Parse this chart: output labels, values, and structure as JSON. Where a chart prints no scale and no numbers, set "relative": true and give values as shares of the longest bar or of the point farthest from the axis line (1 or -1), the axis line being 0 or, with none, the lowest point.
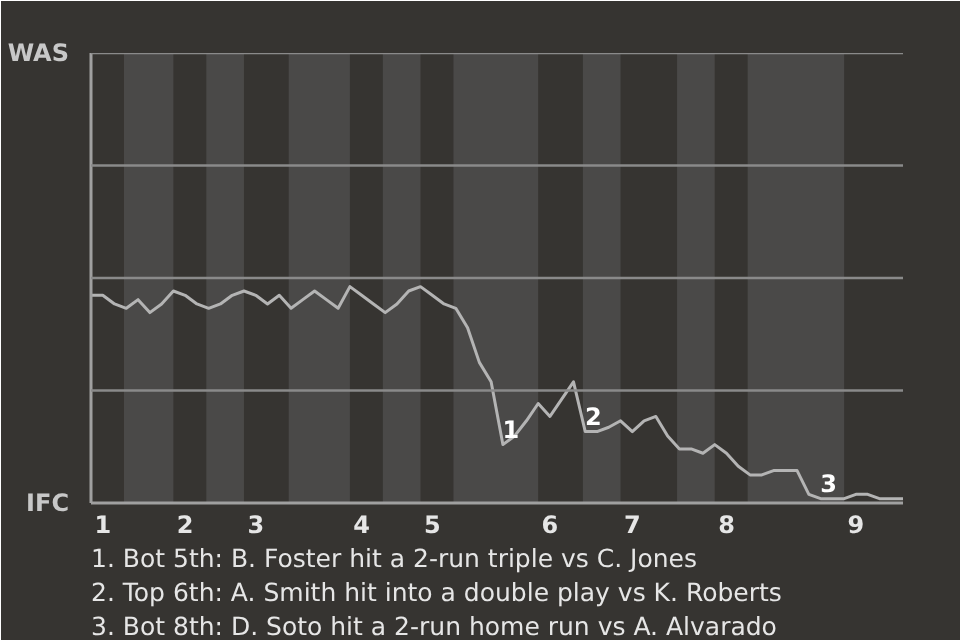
{
  "chart_data": {
    "type": "line",
    "relative": true,
    "color": "#b4b4b4",
    "line_style": "solid",
    "marker": "none",
    "categories": [
      null,
      "1",
      null,
      null,
      null,
      null,
      null,
      null,
      "2",
      null,
      null,
      null,
      null,
      null,
      "3",
      null,
      null,
      null,
      null,
      null,
      null,
      null,
      null,
      "4",
      null,
      null,
      null,
      null,
      null,
      "5",
      null,
      null,
      null,
      null,
      null,
      null,
      null,
      null,
      null,
      "6",
      null,
      null,
      null,
      null,
      null,
      null,
      "7",
      null,
      null,
      null,
      null,
      null,
      null,
      null,
      "8",
      null,
      null,
      null,
      null,
      null,
      null,
      null,
      null,
      null,
      null,
      "9",
      null,
      null,
      null,
      null
    ],
    "values": [
      0.96,
      0.96,
      0.92,
      0.9,
      0.94,
      0.88,
      0.92,
      0.98,
      0.96,
      0.92,
      0.9,
      0.92,
      0.96,
      0.98,
      0.96,
      0.92,
      0.96,
      0.9,
      0.94,
      0.98,
      0.94,
      0.9,
      1,
      0.96,
      0.92,
      0.88,
      0.92,
      0.98,
      1,
      0.96,
      0.92,
      0.9,
      0.81,
      0.65,
      0.56,
      0.27,
      0.31,
      0.38,
      0.46,
      0.4,
      0.48,
      0.56,
      0.33,
      0.33,
      0.35,
      0.38,
      0.33,
      0.38,
      0.4,
      0.31,
      0.25,
      0.25,
      0.23,
      0.27,
      0.23,
      0.17,
      0.13,
      0.13,
      0.15,
      0.15,
      0.15,
      0.04,
      0.02,
      0.02,
      0.02,
      0.04,
      0.04,
      0.02,
      0.02,
      0.02
    ],
    "ref_lines": [
      {
        "axis": "y",
        "value": 0.52,
        "color": "#8a8a8a"
      },
      {
        "axis": "y",
        "value": 1.04,
        "color": "#8a8a8a"
      },
      {
        "axis": "y",
        "value": 1.56,
        "color": "#8a8a8a"
      },
      {
        "axis": "y",
        "value": 2.08,
        "color": "#8a8a8a"
      }
    ],
    "annotations": [
      "WAS",
      "IFC",
      {
        "text": "1",
        "y": 0.27
      },
      {
        "text": "2",
        "y": 0.33
      },
      {
        "text": "3",
        "y": 0.02
      },
      "1. Bot 5th: B. Foster hit a 2-run triple vs C. Jones",
      "2. Top 6th: A. Smith hit into a double play vs K. Roberts",
      "3. Bot 8th: D. Soto hit a 2-run home run vs A. Alvarado"
    ]
  }
}
